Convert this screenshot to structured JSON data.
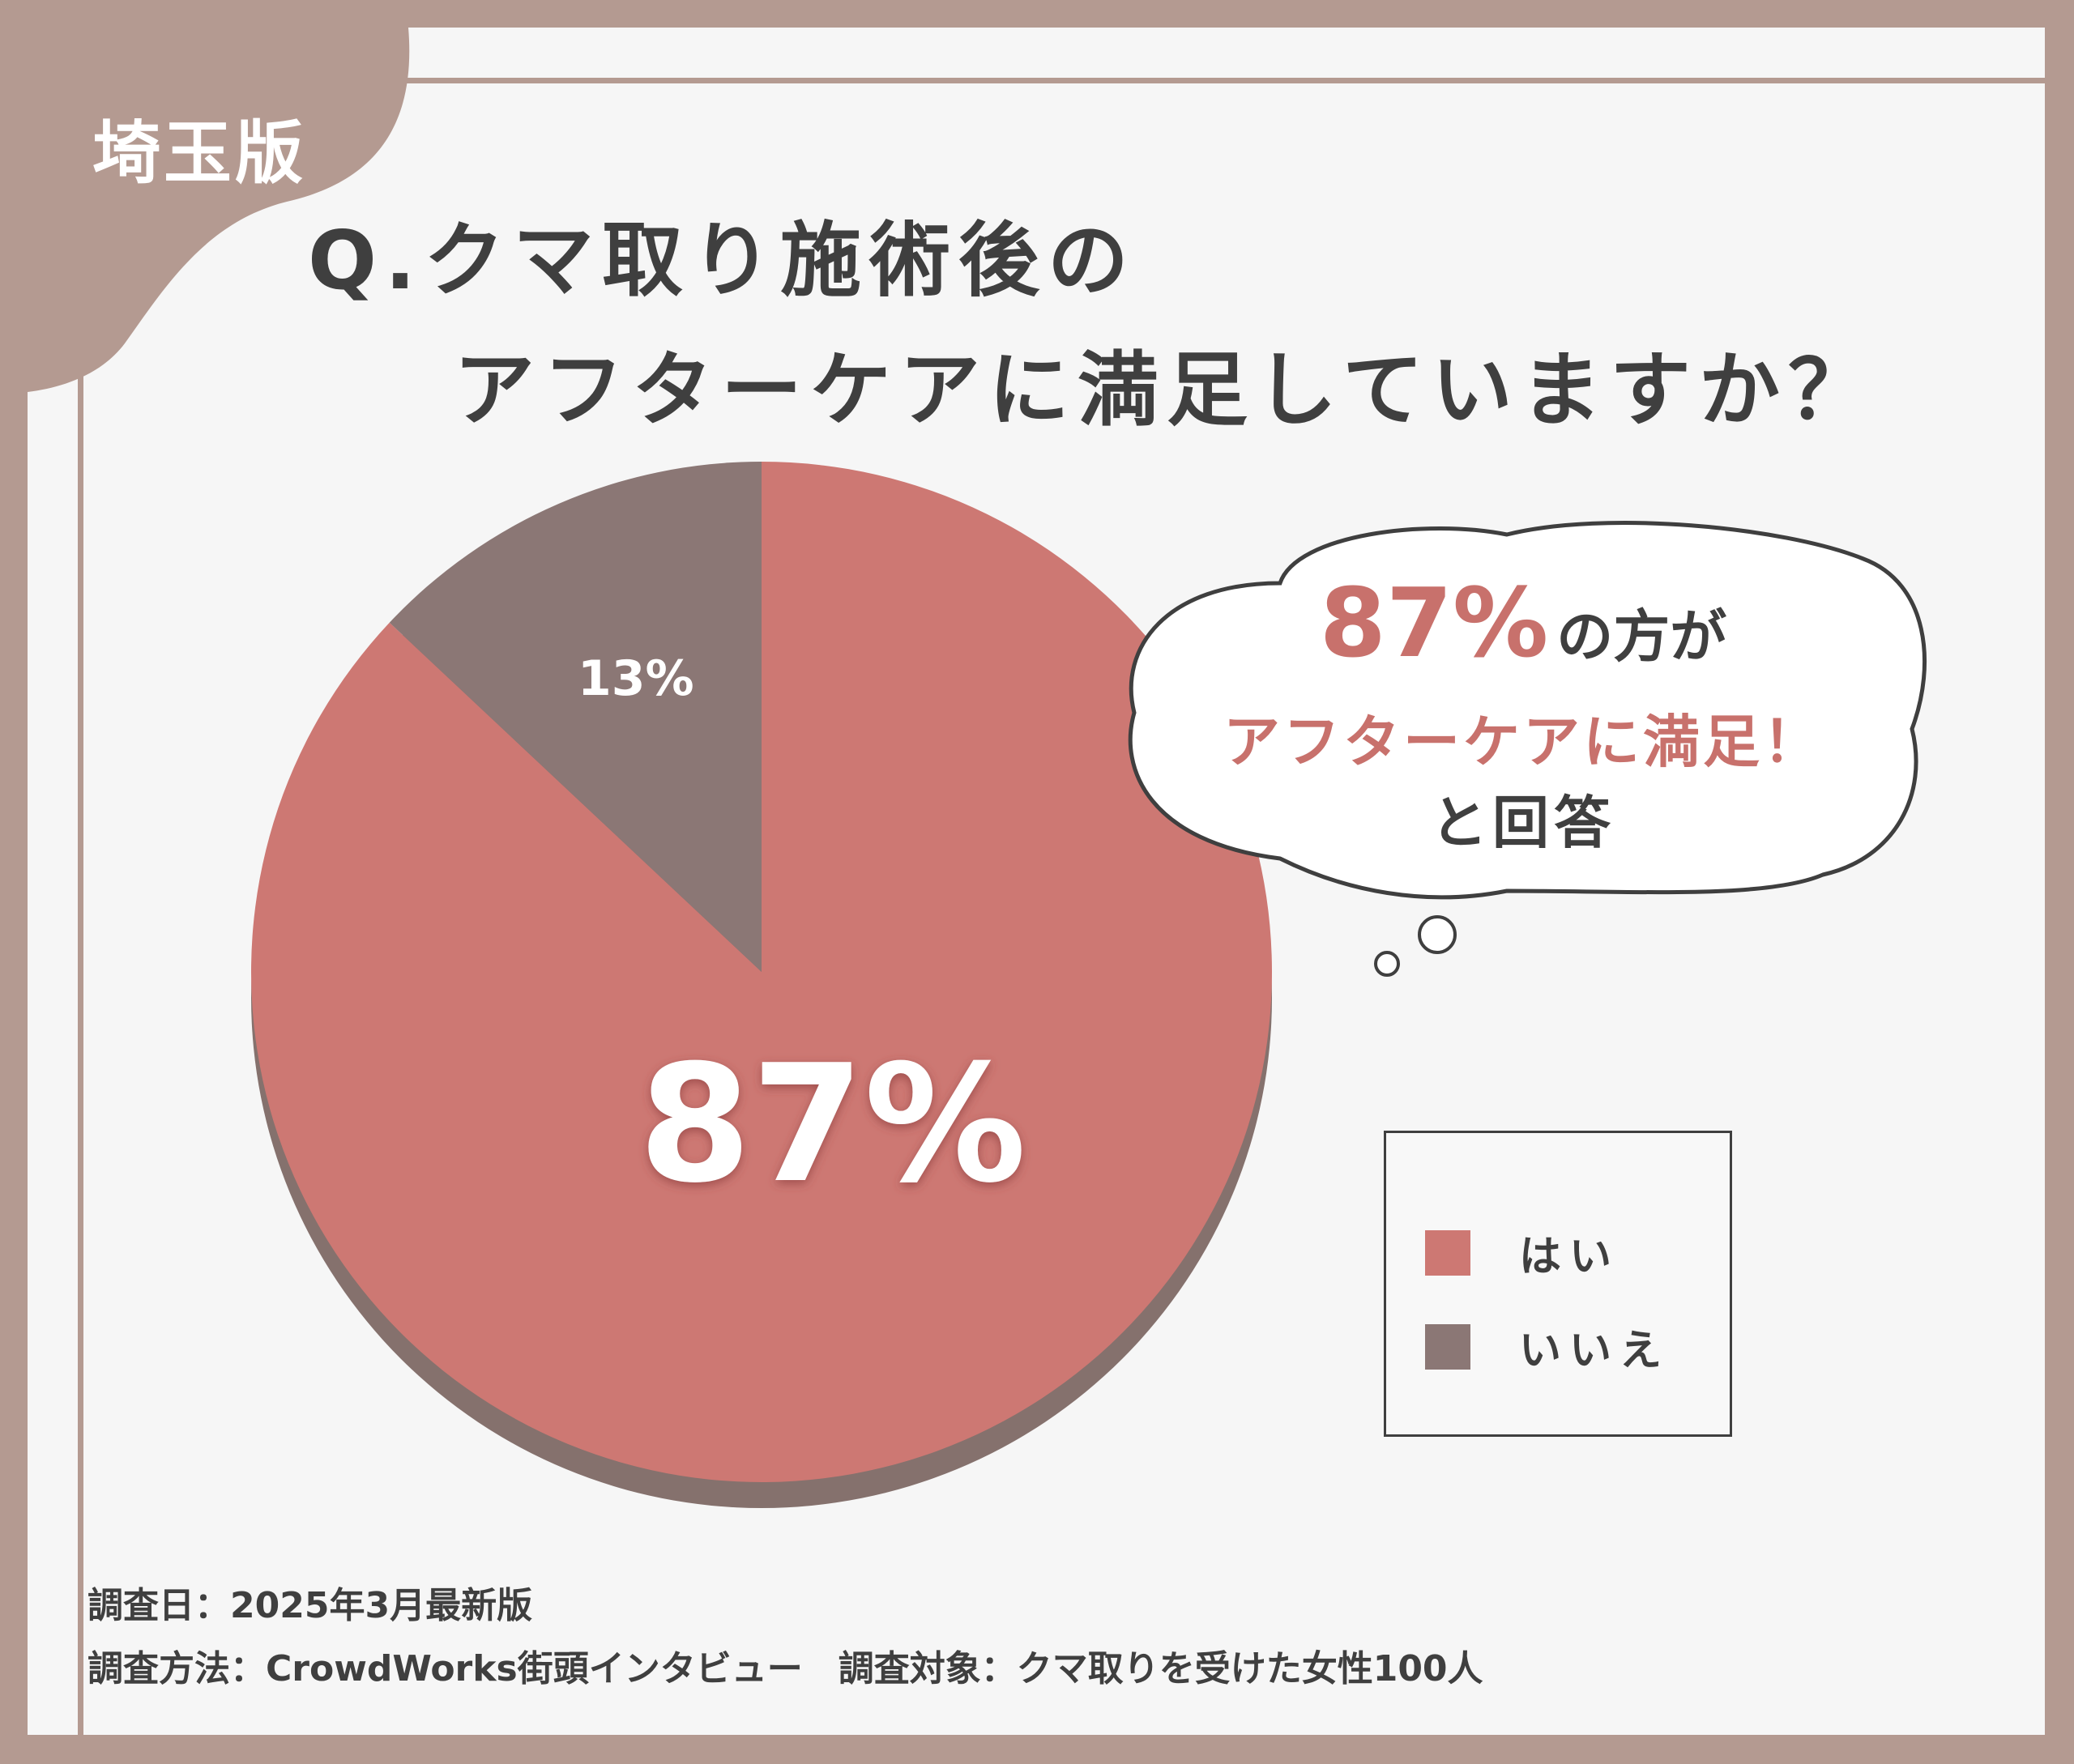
{
  "region_tag": "埼玉版",
  "title": {
    "line1": "Q.クマ取り施術後の",
    "line2": "アフターケアに満足していますか？"
  },
  "callout": {
    "value": "87%",
    "suffix": "の方が",
    "line2": "アフターケアに満足！",
    "line3": "と回答"
  },
  "colors": {
    "yes": "#cd7873",
    "no": "#8b7775",
    "frame": "#b49a91",
    "text": "#3f3f3f",
    "pie_edge": "#85716d"
  },
  "chart_data": {
    "type": "pie",
    "categories": [
      "はい",
      "いいえ"
    ],
    "values": [
      87,
      13
    ],
    "labels": [
      "87%",
      "13%"
    ],
    "legend": [
      "はい",
      "いいえ"
    ],
    "legend_position": "right"
  },
  "footer": {
    "survey_date": "調査日：2025年3月最新版",
    "survey_method": "調査方法：CrowdWorks街頭インタビュー　調査対象：クマ取りを受けた女性100人"
  }
}
